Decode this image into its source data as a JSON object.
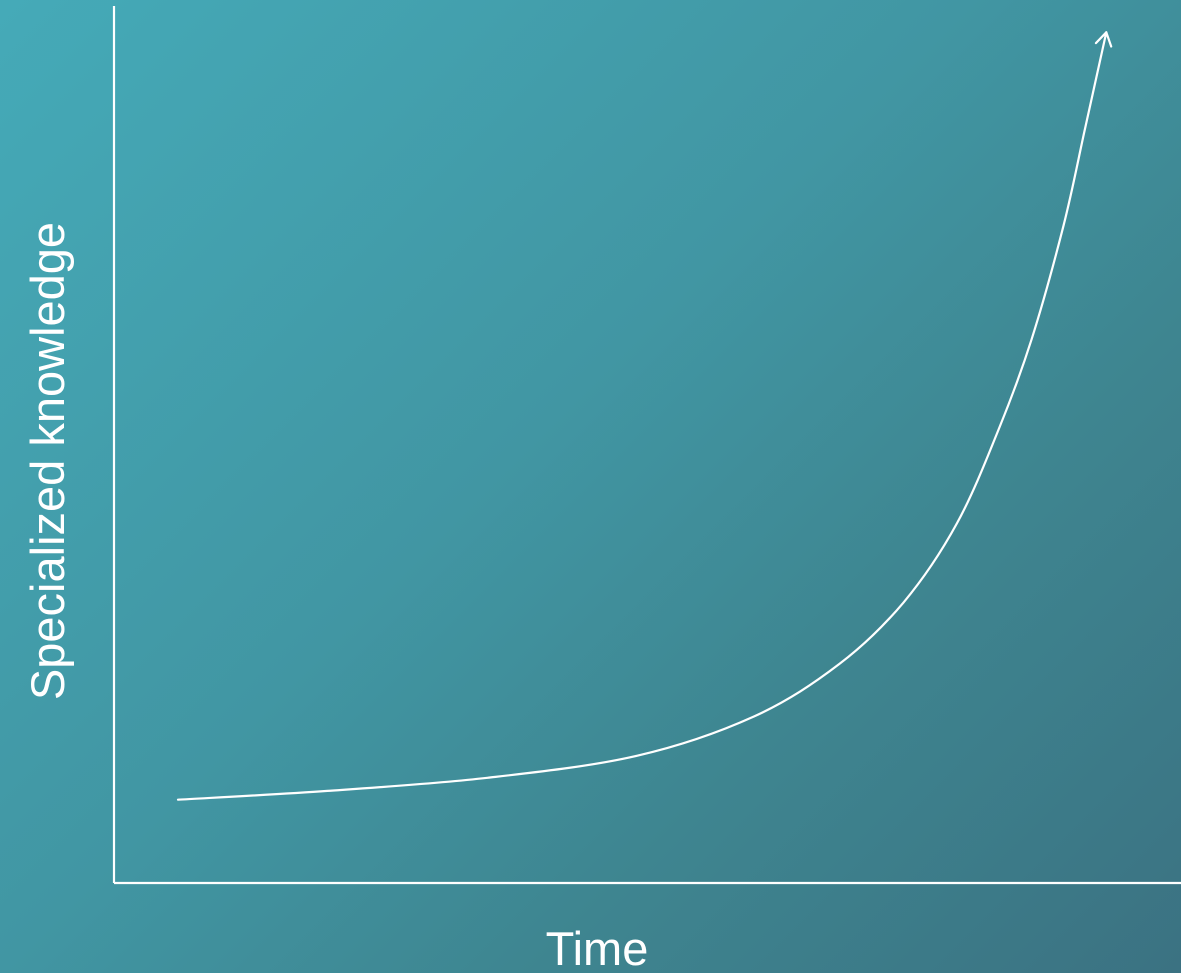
{
  "chart_data": {
    "type": "line",
    "title": "",
    "xlabel": "Time",
    "ylabel": "Specialized knowledge",
    "grid": false,
    "legend": "none",
    "tick_labels": false,
    "colors": {
      "line": "#ffffff",
      "axis": "#ffffff",
      "text": "#ffffff"
    },
    "xlim": [
      0,
      1
    ],
    "ylim": [
      0,
      1
    ],
    "series": [
      {
        "shape": "exponential-growth",
        "end_marker": "arrow",
        "x": [
          0.06,
          0.2,
          0.35,
          0.49,
          0.6,
          0.68,
          0.74,
          0.79,
          0.83,
          0.86,
          0.89,
          0.91,
          0.93
        ],
        "values": [
          0.095,
          0.105,
          0.12,
          0.145,
          0.19,
          0.25,
          0.32,
          0.41,
          0.52,
          0.62,
          0.75,
          0.86,
          0.97
        ]
      }
    ]
  }
}
